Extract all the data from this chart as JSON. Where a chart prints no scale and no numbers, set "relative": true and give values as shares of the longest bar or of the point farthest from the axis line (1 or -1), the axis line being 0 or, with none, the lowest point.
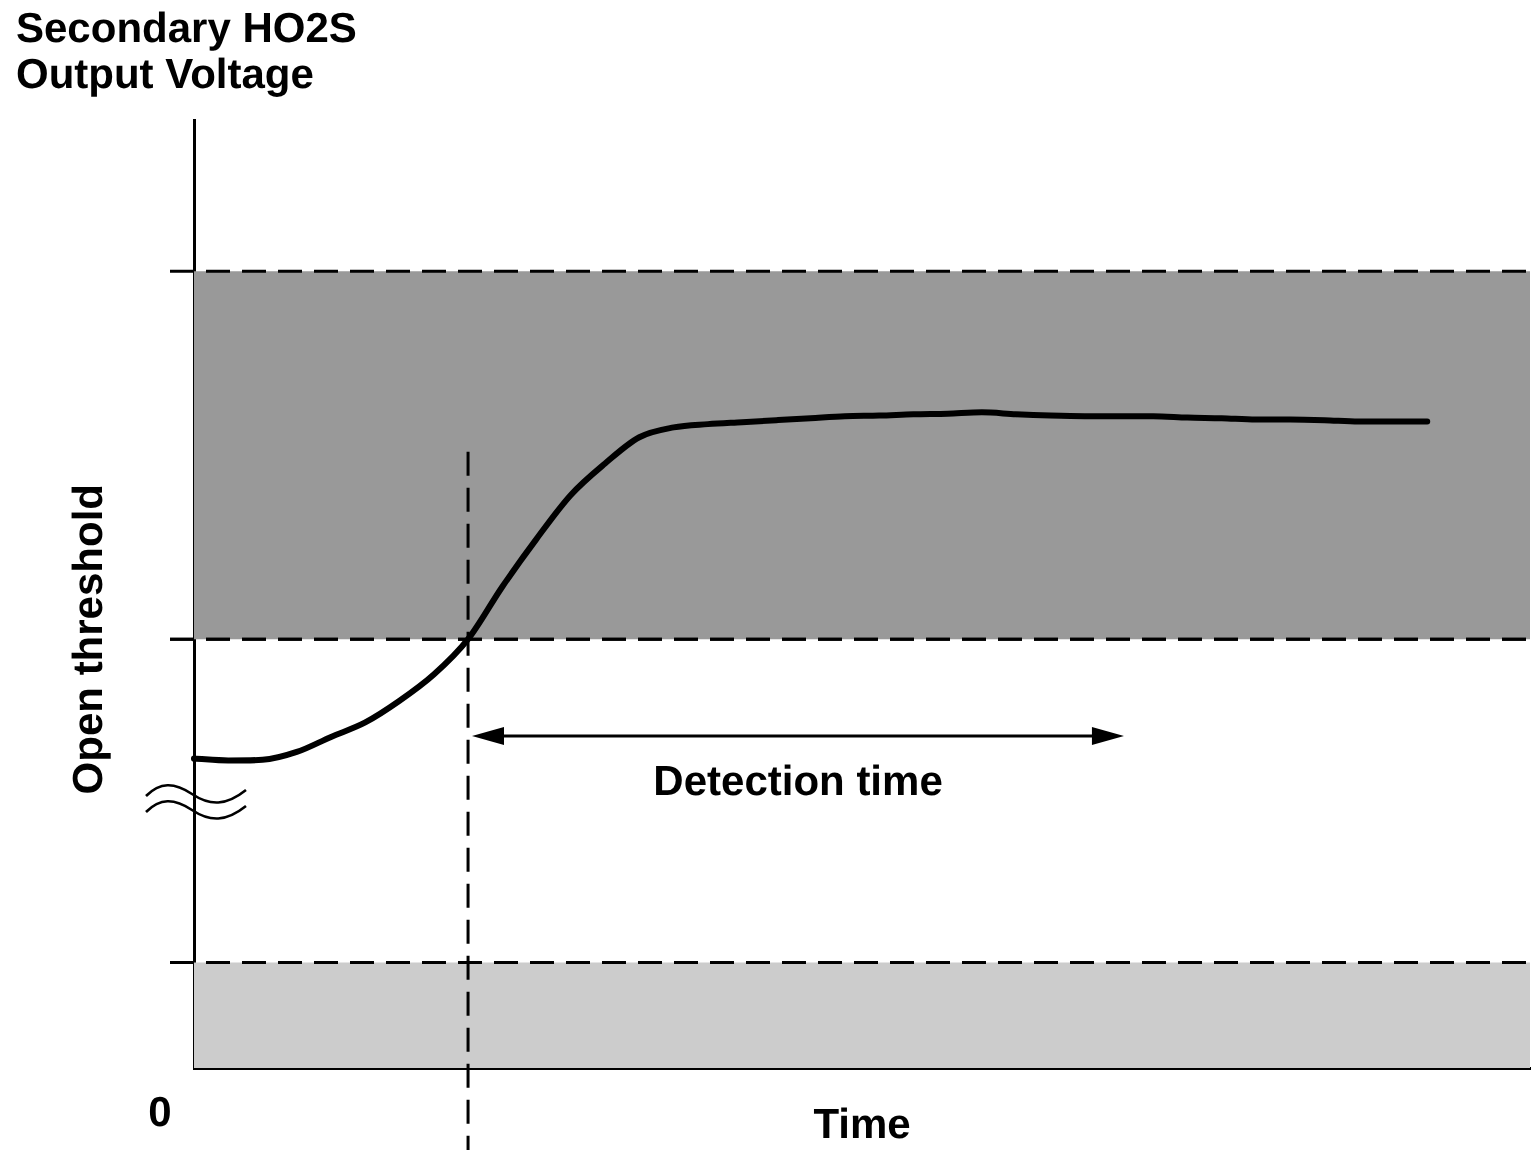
{
  "chart_data": {
    "type": "line",
    "title": "Secondary HO2S Output Voltage",
    "xlabel": "Time",
    "relative": true,
    "categories": [
      null,
      null,
      null,
      null,
      null,
      null,
      null,
      null,
      null,
      null,
      null,
      null,
      null,
      null,
      null,
      null,
      null,
      null,
      null,
      null,
      null,
      null,
      null,
      null,
      null,
      null,
      null,
      null,
      null,
      null,
      null,
      null,
      null,
      null,
      null,
      null,
      null,
      null,
      null,
      null
    ],
    "series": [
      {
        "color": "#000000",
        "values": [
          0.472,
          0.469,
          0.47,
          0.482,
          0.505,
          0.527,
          0.56,
          0.6,
          0.654,
          0.734,
          0.807,
          0.874,
          0.922,
          0.962,
          0.977,
          0.982,
          0.985,
          0.988,
          0.991,
          0.994,
          0.995,
          0.997,
          0.998,
          1,
          0.997,
          0.995,
          0.994,
          0.994,
          0.994,
          0.992,
          0.991,
          0.989,
          0.989,
          0.988,
          0.986,
          0.986,
          0.986,
          null,
          null,
          null
        ]
      }
    ],
    "bands": [
      {
        "axis": "y",
        "from": 0.654,
        "to": 1.215,
        "color": "#999999"
      },
      {
        "axis": "y",
        "from": 0,
        "to": 0.161,
        "color": "#cccccc"
      }
    ],
    "ref_lines": [
      {
        "axis": "y",
        "value": 0.654,
        "label": "Open threshold",
        "line_style": "dashed"
      }
    ],
    "annotations": [
      "Detection time",
      "0"
    ],
    "grid": false,
    "legend": false,
    "marker": "none",
    "line_style": "solid"
  }
}
